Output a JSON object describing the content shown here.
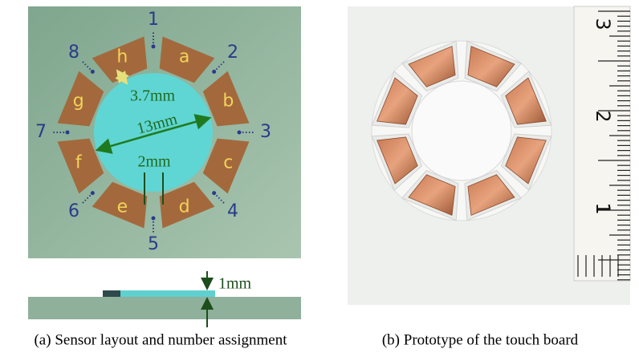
{
  "panel_a": {
    "pads": [
      "a",
      "b",
      "c",
      "d",
      "e",
      "f",
      "g",
      "h"
    ],
    "sensors": [
      "1",
      "2",
      "3",
      "4",
      "5",
      "6",
      "7",
      "8"
    ],
    "dimensions": {
      "gap": "3.7mm",
      "diameter": "13mm",
      "spacing": "2mm",
      "thickness": "1mm"
    },
    "caption": "(a) Sensor layout and number assignment"
  },
  "panel_b": {
    "ruler_labels": [
      "3",
      "2",
      "1"
    ],
    "caption": "(b) Prototype of the touch board"
  }
}
